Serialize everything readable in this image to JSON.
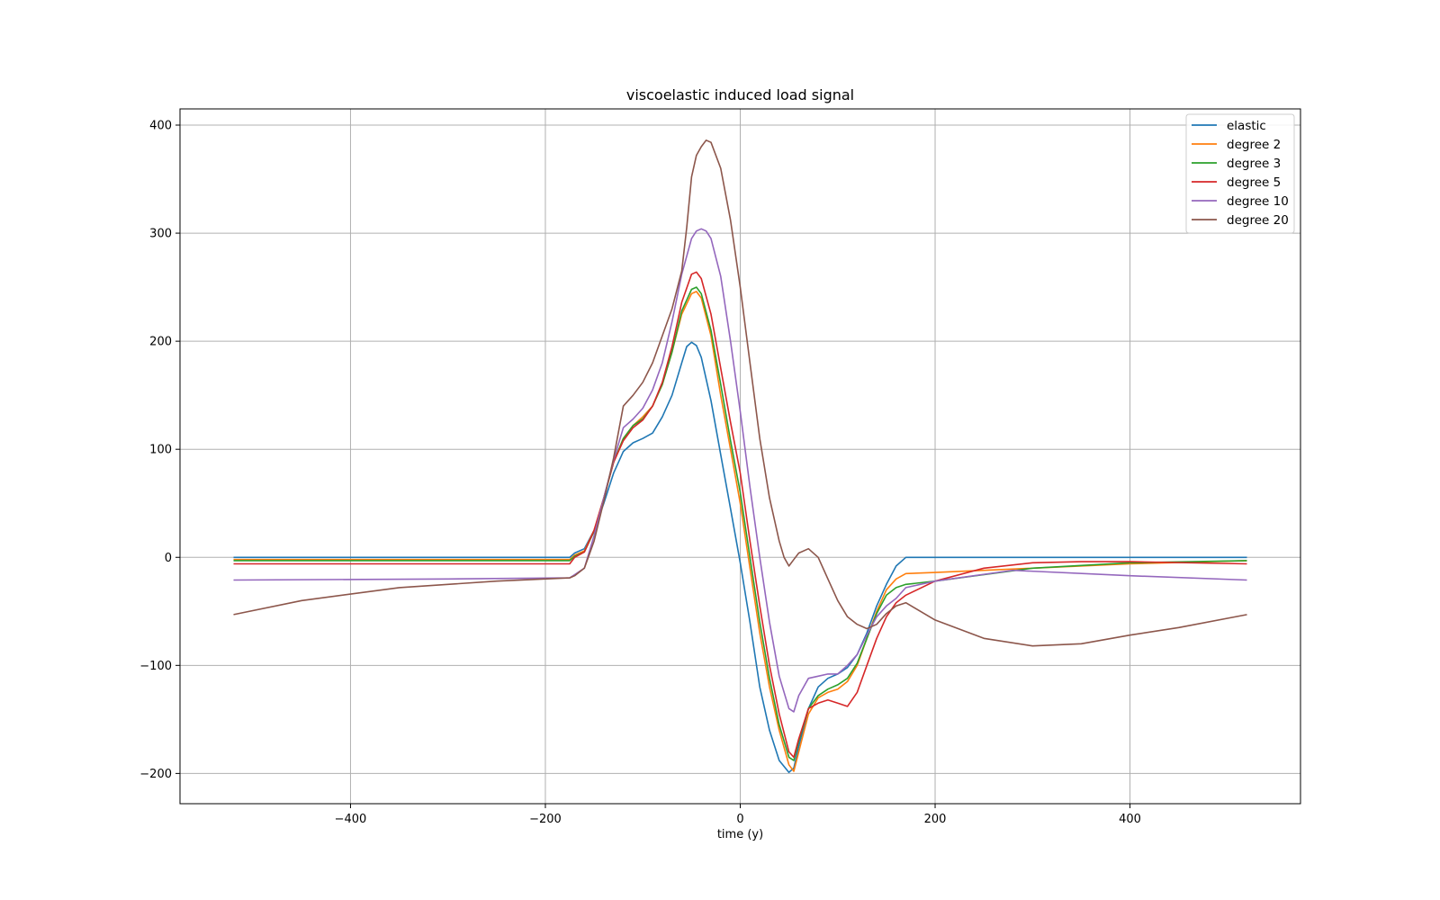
{
  "chart_data": {
    "type": "line",
    "title": "viscoelastic induced load signal",
    "xlabel": "time (y)",
    "ylabel": "",
    "xlim": [
      -575,
      575
    ],
    "ylim": [
      -228,
      415
    ],
    "xticks": [
      -400,
      -200,
      0,
      200,
      400
    ],
    "yticks": [
      -200,
      -100,
      0,
      100,
      200,
      300,
      400
    ],
    "xtick_labels": [
      "−400",
      "−200",
      "0",
      "200",
      "400"
    ],
    "ytick_labels": [
      "−200",
      "−100",
      "0",
      "100",
      "200",
      "300",
      "400"
    ],
    "grid": true,
    "legend_position": "upper-right",
    "series": [
      {
        "name": "elastic",
        "color": "#1f77b4",
        "x": [
          -520,
          -300,
          -175,
          -170,
          -160,
          -150,
          -140,
          -130,
          -120,
          -110,
          -100,
          -90,
          -80,
          -70,
          -60,
          -55,
          -50,
          -45,
          -40,
          -30,
          -20,
          -10,
          0,
          10,
          20,
          30,
          40,
          50,
          55,
          60,
          70,
          80,
          90,
          100,
          110,
          120,
          130,
          140,
          150,
          160,
          170,
          200,
          300,
          400,
          520
        ],
        "y": [
          0,
          0,
          0,
          4,
          8,
          25,
          50,
          78,
          98,
          106,
          110,
          115,
          130,
          150,
          180,
          195,
          199,
          196,
          185,
          145,
          95,
          45,
          -5,
          -60,
          -120,
          -160,
          -188,
          -199,
          -195,
          -175,
          -140,
          -120,
          -112,
          -108,
          -102,
          -90,
          -70,
          -45,
          -25,
          -8,
          0,
          0,
          0,
          0,
          0
        ]
      },
      {
        "name": "degree 2",
        "color": "#ff7f0e",
        "x": [
          -520,
          -300,
          -175,
          -170,
          -160,
          -150,
          -140,
          -130,
          -120,
          -110,
          -100,
          -90,
          -80,
          -70,
          -60,
          -50,
          -45,
          -40,
          -30,
          -20,
          -10,
          0,
          10,
          20,
          30,
          40,
          50,
          55,
          60,
          70,
          80,
          90,
          100,
          110,
          120,
          130,
          140,
          150,
          160,
          170,
          200,
          300,
          400,
          520
        ],
        "y": [
          -2,
          -2,
          -2,
          2,
          6,
          25,
          55,
          88,
          110,
          122,
          130,
          140,
          160,
          190,
          225,
          244,
          246,
          240,
          205,
          150,
          100,
          50,
          -10,
          -70,
          -120,
          -160,
          -192,
          -198,
          -180,
          -145,
          -130,
          -125,
          -122,
          -115,
          -100,
          -75,
          -50,
          -30,
          -20,
          -15,
          -14,
          -10,
          -6,
          -3
        ]
      },
      {
        "name": "degree 3",
        "color": "#2ca02c",
        "x": [
          -520,
          -300,
          -175,
          -170,
          -160,
          -150,
          -140,
          -130,
          -120,
          -110,
          -100,
          -90,
          -80,
          -70,
          -60,
          -50,
          -45,
          -40,
          -30,
          -20,
          -10,
          0,
          10,
          20,
          30,
          40,
          50,
          55,
          60,
          70,
          80,
          90,
          100,
          110,
          120,
          130,
          140,
          150,
          160,
          170,
          200,
          300,
          400,
          520
        ],
        "y": [
          -3,
          -3,
          -3,
          1,
          5,
          24,
          55,
          88,
          110,
          122,
          128,
          140,
          160,
          190,
          228,
          248,
          250,
          244,
          210,
          160,
          108,
          60,
          0,
          -60,
          -112,
          -155,
          -185,
          -188,
          -170,
          -140,
          -128,
          -122,
          -118,
          -112,
          -98,
          -75,
          -52,
          -35,
          -28,
          -25,
          -22,
          -10,
          -5,
          -3
        ]
      },
      {
        "name": "degree 5",
        "color": "#d62728",
        "x": [
          -520,
          -300,
          -175,
          -170,
          -160,
          -150,
          -140,
          -130,
          -120,
          -110,
          -100,
          -90,
          -80,
          -70,
          -60,
          -50,
          -45,
          -40,
          -30,
          -20,
          -10,
          0,
          10,
          20,
          30,
          40,
          50,
          55,
          60,
          70,
          80,
          90,
          100,
          110,
          120,
          130,
          140,
          150,
          160,
          170,
          200,
          250,
          300,
          350,
          400,
          520
        ],
        "y": [
          -6,
          -6,
          -6,
          0,
          5,
          25,
          55,
          88,
          108,
          120,
          127,
          140,
          162,
          195,
          236,
          262,
          264,
          258,
          225,
          175,
          125,
          78,
          15,
          -45,
          -100,
          -145,
          -180,
          -185,
          -168,
          -140,
          -135,
          -132,
          -135,
          -138,
          -125,
          -100,
          -75,
          -55,
          -42,
          -35,
          -22,
          -10,
          -5,
          -4,
          -4,
          -6
        ]
      },
      {
        "name": "degree 10",
        "color": "#9467bd",
        "x": [
          -520,
          -300,
          -175,
          -170,
          -160,
          -150,
          -140,
          -130,
          -120,
          -110,
          -100,
          -90,
          -80,
          -70,
          -60,
          -50,
          -45,
          -40,
          -35,
          -30,
          -20,
          -10,
          0,
          10,
          20,
          30,
          40,
          50,
          55,
          60,
          70,
          80,
          90,
          100,
          110,
          120,
          130,
          140,
          150,
          160,
          170,
          200,
          280,
          400,
          520
        ],
        "y": [
          -21,
          -20,
          -19,
          -16,
          -10,
          20,
          55,
          90,
          120,
          128,
          138,
          155,
          180,
          218,
          262,
          295,
          302,
          304,
          302,
          295,
          260,
          200,
          135,
          65,
          0,
          -60,
          -110,
          -140,
          -143,
          -128,
          -112,
          -110,
          -108,
          -108,
          -100,
          -90,
          -72,
          -55,
          -45,
          -38,
          -28,
          -22,
          -12,
          -17,
          -21
        ]
      },
      {
        "name": "degree 20",
        "color": "#8c564b",
        "x": [
          -520,
          -450,
          -350,
          -250,
          -175,
          -170,
          -160,
          -150,
          -140,
          -130,
          -120,
          -110,
          -100,
          -90,
          -80,
          -70,
          -60,
          -55,
          -50,
          -45,
          -40,
          -35,
          -30,
          -20,
          -10,
          0,
          10,
          20,
          30,
          40,
          45,
          50,
          55,
          60,
          70,
          80,
          90,
          100,
          110,
          120,
          130,
          140,
          150,
          160,
          170,
          200,
          250,
          300,
          350,
          400,
          450,
          520
        ],
        "y": [
          -53,
          -40,
          -28,
          -22,
          -19,
          -17,
          -10,
          15,
          52,
          92,
          140,
          150,
          162,
          180,
          205,
          230,
          265,
          305,
          352,
          372,
          380,
          386,
          384,
          360,
          312,
          250,
          180,
          110,
          55,
          15,
          0,
          -8,
          -2,
          4,
          8,
          0,
          -20,
          -40,
          -55,
          -62,
          -66,
          -62,
          -52,
          -45,
          -42,
          -58,
          -75,
          -82,
          -80,
          -72,
          -65,
          -53
        ]
      }
    ]
  }
}
